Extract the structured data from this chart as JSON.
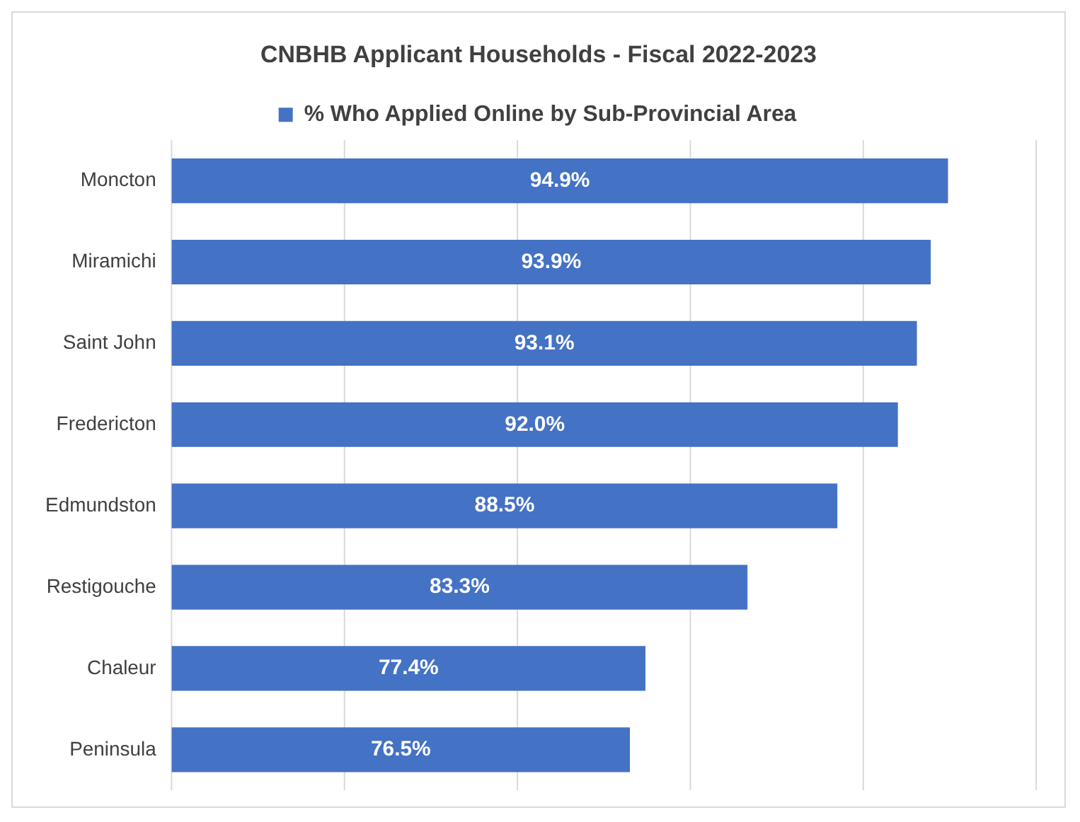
{
  "chart_data": {
    "type": "bar",
    "orientation": "horizontal",
    "title": "CNBHB Applicant Households - Fiscal 2022-2023",
    "categories": [
      "Moncton",
      "Miramichi",
      "Saint John",
      "Fredericton",
      "Edmundston",
      "Restigouche",
      "Chaleur",
      "Peninsula"
    ],
    "series": [
      {
        "name": "% Who Applied Online by Sub-Provincial Area",
        "color": "#4472c4",
        "values": [
          94.9,
          93.9,
          93.1,
          92.0,
          88.5,
          83.3,
          77.4,
          76.5
        ],
        "value_labels": [
          "94.9%",
          "93.9%",
          "93.1%",
          "92.0%",
          "88.5%",
          "83.3%",
          "77.4%",
          "76.5%"
        ]
      }
    ],
    "xlim": [
      50,
      100
    ],
    "xticks": [
      {
        "value": 50,
        "label": null
      },
      {
        "value": 60,
        "label": null
      },
      {
        "value": 70,
        "label": null
      },
      {
        "value": 80,
        "label": null
      },
      {
        "value": 90,
        "label": null
      },
      {
        "value": 100,
        "label": null
      }
    ],
    "grid": "x",
    "legend": "top",
    "tick_labels": "y"
  }
}
